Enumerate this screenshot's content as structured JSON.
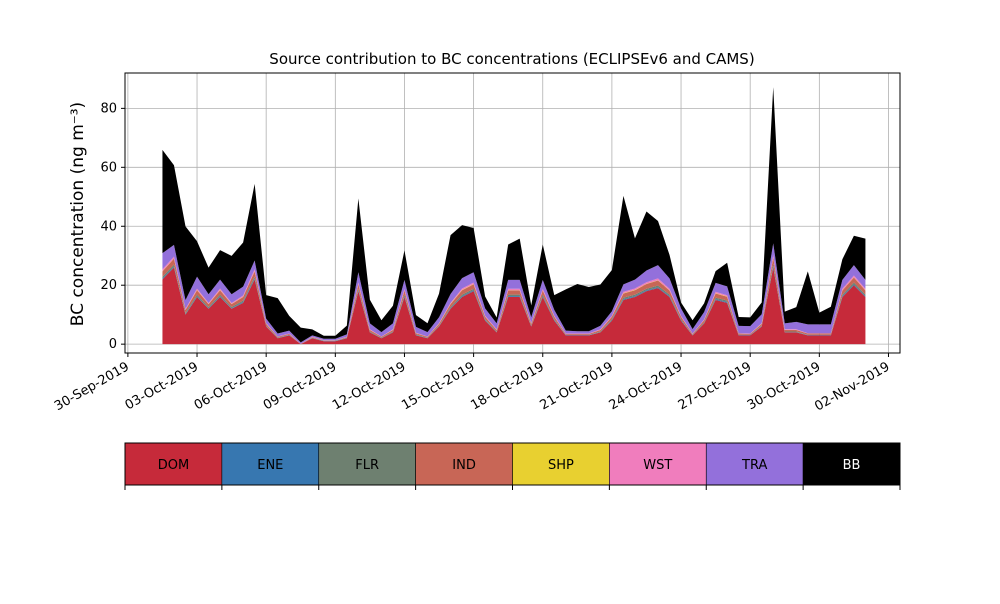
{
  "chart_data": {
    "type": "area",
    "stacked": true,
    "title": "Source contribution to BC concentrations (ECLIPSEv6 and CAMS)",
    "ylabel": "BC concentration (ng m⁻³)",
    "xlabel": "",
    "xlim": [
      "2019-09-29T21:00",
      "2019-11-02T12:00"
    ],
    "ylim": [
      -3,
      92
    ],
    "grid": true,
    "yticks": [
      0,
      20,
      40,
      60,
      80
    ],
    "xticks": [
      {
        "date": "2019-09-30",
        "label": "30-Sep-2019"
      },
      {
        "date": "2019-10-03",
        "label": "03-Oct-2019"
      },
      {
        "date": "2019-10-06",
        "label": "06-Oct-2019"
      },
      {
        "date": "2019-10-09",
        "label": "09-Oct-2019"
      },
      {
        "date": "2019-10-12",
        "label": "12-Oct-2019"
      },
      {
        "date": "2019-10-15",
        "label": "15-Oct-2019"
      },
      {
        "date": "2019-10-18",
        "label": "18-Oct-2019"
      },
      {
        "date": "2019-10-21",
        "label": "21-Oct-2019"
      },
      {
        "date": "2019-10-24",
        "label": "24-Oct-2019"
      },
      {
        "date": "2019-10-27",
        "label": "27-Oct-2019"
      },
      {
        "date": "2019-10-30",
        "label": "30-Oct-2019"
      },
      {
        "date": "2019-11-02",
        "label": "02-Nov-2019"
      }
    ],
    "legend": {
      "placement": "bottom",
      "entries": [
        {
          "name": "DOM",
          "color": "#c62a3a",
          "text_color": "#000000"
        },
        {
          "name": "ENE",
          "color": "#3777b0",
          "text_color": "#000000"
        },
        {
          "name": "FLR",
          "color": "#6e8070",
          "text_color": "#000000"
        },
        {
          "name": "IND",
          "color": "#c86656",
          "text_color": "#000000"
        },
        {
          "name": "SHP",
          "color": "#e8d030",
          "text_color": "#000000"
        },
        {
          "name": "WST",
          "color": "#f07dbd",
          "text_color": "#000000"
        },
        {
          "name": "TRA",
          "color": "#9370db",
          "text_color": "#000000"
        },
        {
          "name": "BB",
          "color": "#000000",
          "text_color": "#ffffff"
        }
      ]
    },
    "x": [
      "2019-10-01T12:00",
      "2019-10-02T00:00",
      "2019-10-02T12:00",
      "2019-10-03T00:00",
      "2019-10-03T12:00",
      "2019-10-04T00:00",
      "2019-10-04T12:00",
      "2019-10-05T00:00",
      "2019-10-05T12:00",
      "2019-10-06T00:00",
      "2019-10-06T12:00",
      "2019-10-07T00:00",
      "2019-10-07T12:00",
      "2019-10-08T00:00",
      "2019-10-08T12:00",
      "2019-10-09T00:00",
      "2019-10-09T12:00",
      "2019-10-10T00:00",
      "2019-10-10T12:00",
      "2019-10-11T00:00",
      "2019-10-11T12:00",
      "2019-10-12T00:00",
      "2019-10-12T12:00",
      "2019-10-13T00:00",
      "2019-10-13T12:00",
      "2019-10-14T00:00",
      "2019-10-14T12:00",
      "2019-10-15T00:00",
      "2019-10-15T12:00",
      "2019-10-16T00:00",
      "2019-10-16T12:00",
      "2019-10-17T00:00",
      "2019-10-17T12:00",
      "2019-10-18T00:00",
      "2019-10-18T12:00",
      "2019-10-19T00:00",
      "2019-10-19T12:00",
      "2019-10-20T00:00",
      "2019-10-20T12:00",
      "2019-10-21T00:00",
      "2019-10-21T12:00",
      "2019-10-22T00:00",
      "2019-10-22T12:00",
      "2019-10-23T00:00",
      "2019-10-23T12:00",
      "2019-10-24T00:00",
      "2019-10-24T12:00",
      "2019-10-25T00:00",
      "2019-10-25T12:00",
      "2019-10-26T00:00",
      "2019-10-26T12:00",
      "2019-10-27T00:00",
      "2019-10-27T12:00",
      "2019-10-28T00:00",
      "2019-10-28T12:00",
      "2019-10-29T00:00",
      "2019-10-29T12:00",
      "2019-10-30T00:00",
      "2019-10-30T12:00",
      "2019-10-31T00:00",
      "2019-10-31T12:00",
      "2019-11-01T00:00"
    ],
    "series": [
      {
        "name": "DOM",
        "color": "#c62a3a",
        "values": [
          22,
          26,
          10,
          16,
          12,
          16,
          12,
          14,
          22,
          6,
          2,
          3,
          0,
          2,
          1,
          1,
          2,
          18,
          4,
          2,
          4,
          16,
          3,
          2,
          6,
          12,
          16,
          18,
          8,
          4,
          16,
          16,
          6,
          16,
          8,
          3,
          3,
          3,
          4,
          8,
          15,
          16,
          18,
          19,
          16,
          8,
          3,
          7,
          15,
          14,
          3,
          3,
          6,
          26,
          4,
          4,
          3,
          3,
          3,
          16,
          20,
          16
        ]
      },
      {
        "name": "ENE",
        "color": "#3777b0",
        "values": [
          0.3,
          0.3,
          0.2,
          0.3,
          0.2,
          0.3,
          0.2,
          0.3,
          0.3,
          0.1,
          0.1,
          0.1,
          0,
          0.1,
          0.1,
          0.1,
          0.1,
          0.3,
          0.1,
          0.1,
          0.1,
          0.3,
          0.1,
          0.1,
          0.1,
          0.2,
          0.3,
          0.3,
          0.2,
          0.1,
          0.3,
          0.3,
          0.1,
          0.3,
          0.2,
          0.1,
          0.1,
          0.1,
          0.1,
          0.2,
          0.3,
          0.3,
          0.3,
          0.3,
          0.3,
          0.2,
          0.1,
          0.1,
          0.3,
          0.3,
          0.1,
          0.1,
          0.1,
          0.4,
          0.1,
          0.1,
          0.1,
          0.1,
          0.1,
          0.3,
          0.3,
          0.3
        ]
      },
      {
        "name": "FLR",
        "color": "#6e8070",
        "values": [
          0.6,
          0.7,
          0.4,
          0.5,
          0.4,
          0.5,
          0.4,
          0.5,
          0.6,
          0.2,
          0.1,
          0.1,
          0,
          0.1,
          0.1,
          0.1,
          0.1,
          0.5,
          0.2,
          0.1,
          0.2,
          0.5,
          0.2,
          0.1,
          0.2,
          0.4,
          0.5,
          0.5,
          0.3,
          0.2,
          0.5,
          0.5,
          0.2,
          0.5,
          0.3,
          0.1,
          0.1,
          0.1,
          0.2,
          0.3,
          0.5,
          0.5,
          0.5,
          0.6,
          0.5,
          0.3,
          0.1,
          0.3,
          0.5,
          0.5,
          0.1,
          0.1,
          0.2,
          0.8,
          0.2,
          0.2,
          0.1,
          0.1,
          0.1,
          0.5,
          0.6,
          0.5
        ]
      },
      {
        "name": "IND",
        "color": "#c86656",
        "values": [
          1.8,
          2.0,
          1.0,
          1.5,
          1.0,
          1.5,
          1.0,
          1.2,
          1.8,
          0.6,
          0.3,
          0.3,
          0.1,
          0.2,
          0.1,
          0.1,
          0.2,
          1.5,
          0.5,
          0.3,
          0.5,
          1.4,
          0.4,
          0.3,
          0.6,
          1.0,
          1.5,
          1.5,
          0.8,
          0.5,
          1.4,
          1.4,
          0.6,
          1.4,
          0.8,
          0.3,
          0.3,
          0.3,
          0.5,
          0.8,
          1.4,
          1.5,
          1.6,
          1.7,
          1.4,
          0.8,
          0.3,
          0.7,
          1.4,
          1.3,
          0.4,
          0.3,
          0.6,
          2.2,
          0.5,
          0.5,
          0.4,
          0.4,
          0.4,
          1.4,
          1.7,
          1.4
        ]
      },
      {
        "name": "SHP",
        "color": "#e8d030",
        "values": [
          0.1,
          0.1,
          0.05,
          0.1,
          0.05,
          0.1,
          0.05,
          0.1,
          0.1,
          0.05,
          0,
          0,
          0,
          0,
          0,
          0,
          0,
          0.1,
          0.05,
          0,
          0.05,
          0.1,
          0.05,
          0,
          0.05,
          0.1,
          0.1,
          0.1,
          0.05,
          0.05,
          0.1,
          0.1,
          0.05,
          0.1,
          0.05,
          0,
          0,
          0,
          0.05,
          0.05,
          0.1,
          0.1,
          0.1,
          0.1,
          0.1,
          0.05,
          0,
          0.05,
          0.1,
          0.1,
          0,
          0,
          0.05,
          0.1,
          0.05,
          0.05,
          0,
          0,
          0,
          0.1,
          0.1,
          0.1
        ]
      },
      {
        "name": "WST",
        "color": "#f07dbd",
        "values": [
          0.6,
          0.6,
          0.3,
          0.5,
          0.3,
          0.5,
          0.3,
          0.4,
          0.6,
          0.2,
          0.1,
          0.1,
          0,
          0.1,
          0.05,
          0.05,
          0.1,
          0.5,
          0.2,
          0.1,
          0.2,
          0.5,
          0.1,
          0.1,
          0.2,
          0.3,
          0.5,
          0.5,
          0.3,
          0.2,
          0.5,
          0.5,
          0.2,
          0.5,
          0.3,
          0.1,
          0.1,
          0.1,
          0.2,
          0.3,
          0.5,
          0.5,
          0.5,
          0.6,
          0.5,
          0.3,
          0.1,
          0.2,
          0.5,
          0.4,
          0.1,
          0.1,
          0.2,
          0.7,
          0.2,
          0.2,
          0.1,
          0.1,
          0.1,
          0.5,
          0.6,
          0.5
        ]
      },
      {
        "name": "TRA",
        "color": "#9370db",
        "values": [
          5.5,
          4.0,
          3.0,
          4.0,
          3.0,
          3.0,
          3.0,
          3.0,
          3.0,
          1.5,
          1.0,
          1.0,
          0.5,
          0.5,
          0.5,
          0.5,
          0.8,
          3.5,
          2.0,
          1.5,
          2.0,
          3.0,
          2.0,
          1.5,
          2.0,
          3.0,
          3.5,
          3.5,
          2.5,
          2.0,
          3.0,
          3.0,
          2.0,
          3.0,
          2.0,
          1.0,
          0.8,
          0.8,
          1.2,
          1.5,
          2.5,
          3.0,
          4.0,
          4.5,
          3.5,
          2.5,
          1.5,
          2.5,
          3.0,
          3.0,
          2.5,
          2.5,
          3.0,
          4.0,
          2.0,
          2.5,
          3.0,
          3.0,
          3.0,
          3.0,
          3.5,
          3.0
        ]
      },
      {
        "name": "BB",
        "color": "#000000",
        "values": [
          35,
          27,
          25,
          12,
          9,
          10,
          13,
          15,
          26,
          8,
          12,
          5,
          5,
          2,
          1,
          1,
          3,
          25,
          8,
          4,
          6,
          10,
          4,
          3,
          8,
          20,
          18,
          15,
          4,
          2,
          12,
          14,
          4,
          12,
          5,
          14,
          16,
          15,
          14,
          14,
          30,
          14,
          20,
          15,
          8,
          2,
          3,
          3,
          4,
          8,
          3,
          3,
          4,
          53,
          4,
          5,
          18,
          4,
          6,
          7,
          10,
          14
        ]
      }
    ]
  }
}
